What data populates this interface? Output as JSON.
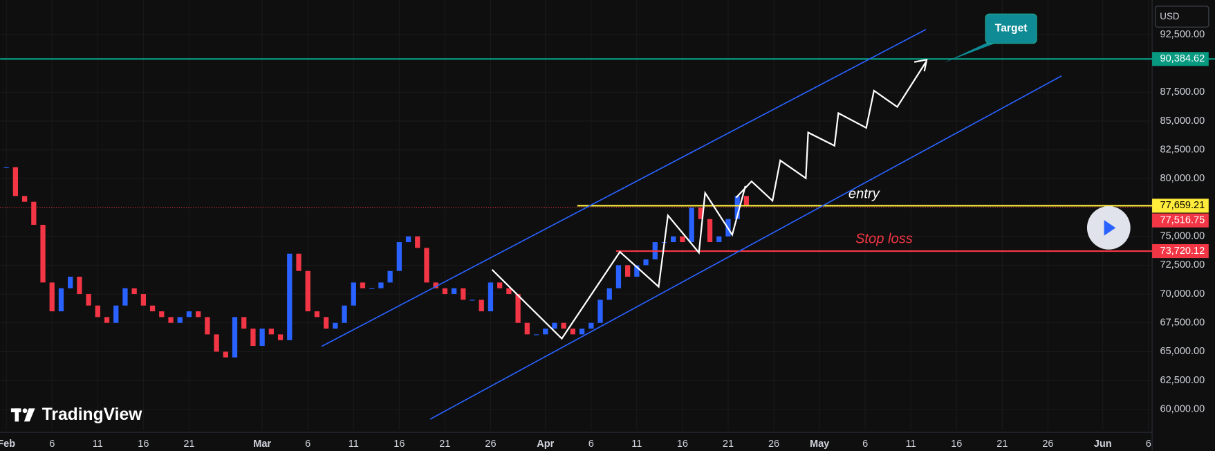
{
  "chart_data": {
    "type": "price",
    "currency": "USD",
    "logo": "TradingView",
    "annotations": {
      "target": "Target",
      "entry": "entry",
      "stop_loss": "Stop loss"
    },
    "up_color": "#2962ff",
    "down_color": "#f23645",
    "x": [
      0,
      1,
      2,
      3,
      4,
      5,
      6,
      7,
      8,
      9,
      10,
      11,
      12,
      13,
      14,
      15,
      16,
      17,
      18,
      19,
      20,
      21,
      22,
      23,
      24,
      25,
      26,
      27,
      28,
      29,
      30,
      31,
      32,
      33,
      34,
      35,
      36,
      37,
      38,
      39,
      40,
      41,
      42,
      43,
      44,
      45,
      46,
      47,
      48,
      49,
      50,
      51,
      52,
      53,
      54,
      55,
      56,
      57,
      58,
      59,
      60,
      61,
      62,
      63,
      64,
      65,
      66,
      67,
      68,
      69,
      70,
      71,
      72,
      73,
      74,
      75,
      76,
      77,
      78,
      79,
      80,
      81
    ],
    "values": [
      81000,
      78500,
      78000,
      76000,
      71000,
      68500,
      70500,
      71500,
      70000,
      69000,
      68000,
      67500,
      69000,
      70500,
      70000,
      69000,
      68500,
      68000,
      67500,
      68000,
      68500,
      68000,
      66500,
      65000,
      64500,
      68000,
      67000,
      65500,
      67000,
      66500,
      66000,
      73500,
      72000,
      68500,
      68000,
      67000,
      67500,
      69000,
      71000,
      70500,
      70500,
      71000,
      72000,
      74500,
      75000,
      74000,
      71000,
      70500,
      70000,
      70500,
      69500,
      69500,
      68500,
      71000,
      70500,
      70000,
      67500,
      66500,
      66500,
      67000,
      67500,
      67000,
      66500,
      67000,
      67500,
      69500,
      70500,
      72500,
      71500,
      72500,
      73000,
      74500,
      74500,
      75000,
      74500,
      77500,
      76500,
      74500,
      75000,
      76500,
      78500,
      77659.21
    ],
    "levels": [
      {
        "value": 90384.62,
        "label": "90,384.62",
        "color": "#089981",
        "style": "solid"
      },
      {
        "value": 77659.21,
        "label": "77,659.21",
        "color": "#ffeb3b",
        "style": "solid"
      },
      {
        "value": 77516.75,
        "label": "77,516.75",
        "color": "#f23645",
        "style": "dotted"
      },
      {
        "value": 73720.12,
        "label": "73,720.12",
        "color": "#f23645",
        "style": "solid"
      }
    ],
    "ylim": [
      58200,
      95500
    ],
    "yticks": [
      {
        "value": 92500,
        "label": "92,500.00"
      },
      {
        "value": 87500,
        "label": "87,500.00"
      },
      {
        "value": 85000,
        "label": "85,000.00"
      },
      {
        "value": 82500,
        "label": "82,500.00"
      },
      {
        "value": 80000,
        "label": "80,000.00"
      },
      {
        "value": 75000,
        "label": "75,000.00"
      },
      {
        "value": 72500,
        "label": "72,500.00"
      },
      {
        "value": 70000,
        "label": "70,000.00"
      },
      {
        "value": 67500,
        "label": "67,500.00"
      },
      {
        "value": 65000,
        "label": "65,000.00"
      },
      {
        "value": 62500,
        "label": "62,500.00"
      },
      {
        "value": 60000,
        "label": "60,000.00"
      }
    ],
    "xlim": [
      -0.68,
      125.4
    ],
    "xticks": [
      {
        "value": 0,
        "label": "Feb"
      },
      {
        "value": 5,
        "label": "6"
      },
      {
        "value": 10,
        "label": "11"
      },
      {
        "value": 15,
        "label": "16"
      },
      {
        "value": 20,
        "label": "21"
      },
      {
        "value": 28,
        "label": "Mar"
      },
      {
        "value": 33,
        "label": "6"
      },
      {
        "value": 38,
        "label": "11"
      },
      {
        "value": 43,
        "label": "16"
      },
      {
        "value": 48,
        "label": "21"
      },
      {
        "value": 53,
        "label": "26"
      },
      {
        "value": 59,
        "label": "Apr"
      },
      {
        "value": 64,
        "label": "6"
      },
      {
        "value": 69,
        "label": "11"
      },
      {
        "value": 74,
        "label": "16"
      },
      {
        "value": 79,
        "label": "21"
      },
      {
        "value": 84,
        "label": "26"
      },
      {
        "value": 89,
        "label": "May"
      },
      {
        "value": 94,
        "label": "6"
      },
      {
        "value": 99,
        "label": "11"
      },
      {
        "value": 104,
        "label": "16"
      },
      {
        "value": 109,
        "label": "21"
      },
      {
        "value": 114,
        "label": "26"
      },
      {
        "value": 120,
        "label": "Jun"
      },
      {
        "value": 125,
        "label": "6"
      }
    ]
  }
}
